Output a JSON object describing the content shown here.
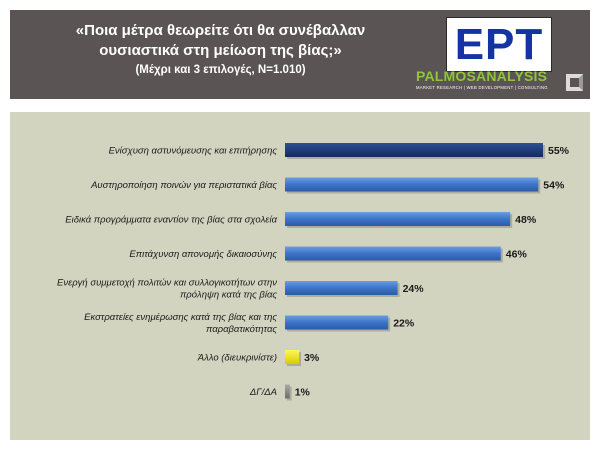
{
  "header": {
    "title_line1": "«Ποια μέτρα θεωρείτε ότι θα συνέβαλλαν",
    "title_line2": "ουσιαστικά στη μείωση της βίας;»",
    "subtitle": "(Μέχρι και 3 επιλογές, Ν=1.010)",
    "logo_text": "ΕΡΤ",
    "logo_icon": "ert-logo",
    "brand_name": "PALMOSANALYSIS",
    "brand_tagline": "MARKET RESEARCH | WEB DEVELOPMENT | CONSULTING",
    "brand_icon": "palmos-square-mark-icon"
  },
  "colors": {
    "header_bg": "#5b5454",
    "panel_bg": "#d2d4bf",
    "bar_top": "#1f3b7a",
    "bar_main": "#3d74c9",
    "bar_other": "#f2e600",
    "bar_dk": "#8a8a8a",
    "logo_blue": "#1434a4",
    "brand_green": "#8fc43c"
  },
  "chart_data": {
    "type": "bar",
    "orientation": "horizontal",
    "categories": [
      [
        "Ενίσχυση αστυνόμευσης και επιτήρησης"
      ],
      [
        "Αυστηροποίηση ποινών για περιστατικά βίας"
      ],
      [
        "Ειδικά προγράμματα εναντίον της βίας στα σχολεία"
      ],
      [
        "Επιτάχυνση απονομής δικαιοσύνης"
      ],
      [
        "Ενεργή συμμετοχή πολιτών και συλλογικοτήτων στην",
        "πρόληψη κατά της βίας"
      ],
      [
        "Εκστρατείες ενημέρωσης κατά της βίας και της",
        "παραβατικότητας"
      ],
      [
        "Άλλο (διευκρινίστε)"
      ],
      [
        "ΔΓ/ΔΑ"
      ]
    ],
    "values": [
      55,
      54,
      48,
      46,
      24,
      22,
      3,
      1
    ],
    "value_labels": [
      "55%",
      "54%",
      "48%",
      "46%",
      "24%",
      "22%",
      "3%",
      "1%"
    ],
    "bar_colors": [
      "#1f3b7a",
      "#3d74c9",
      "#3d74c9",
      "#3d74c9",
      "#3d74c9",
      "#3d74c9",
      "#f2e600",
      "#8a8a8a"
    ],
    "xlim": [
      0,
      55
    ],
    "grid": false,
    "legend": "none"
  }
}
